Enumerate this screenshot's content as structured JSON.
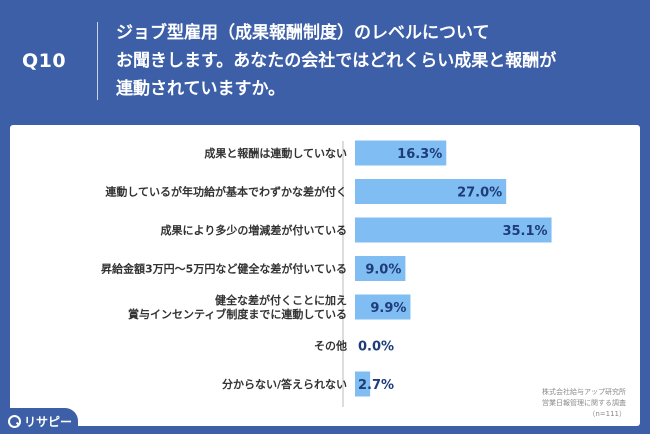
{
  "header": {
    "question_number": "Q10",
    "question_lines": [
      "ジョブ型雇用（成果報酬制度）のレベルについて",
      "お聞きします。あなたの会社ではどれくらい成果と報酬が",
      "連動されていますか。"
    ]
  },
  "footer": {
    "source_lines": [
      "株式会社給与アップ研究所",
      "営業日報管理に関する調査",
      "（n=111）"
    ],
    "logo_text": "リサピー"
  },
  "colors": {
    "background": "#3d5fa8",
    "bar": "#7fbdf2",
    "value_text": "#1f3c78"
  },
  "chart_data": {
    "type": "bar",
    "orientation": "horizontal",
    "unit": "%",
    "categories": [
      [
        "成果と報酬は連動していない"
      ],
      [
        "連動しているが年功給が基本でわずかな差が付く"
      ],
      [
        "成果により多少の増減差が付いている"
      ],
      [
        "昇給金額3万円〜5万円など健全な差が付いている"
      ],
      [
        "健全な差が付くことに加え",
        "賞与インセンティブ制度までに連動している"
      ],
      [
        "その他"
      ],
      [
        "分からない/答えられない"
      ]
    ],
    "values": [
      16.3,
      27.0,
      35.1,
      9.0,
      9.9,
      0.0,
      2.7
    ],
    "value_labels": [
      "16.3%",
      "27.0%",
      "35.1%",
      "9.0%",
      "9.9%",
      "0.0%",
      "2.7%"
    ],
    "xlim": [
      0,
      40
    ],
    "grid": false,
    "legend": "none"
  }
}
